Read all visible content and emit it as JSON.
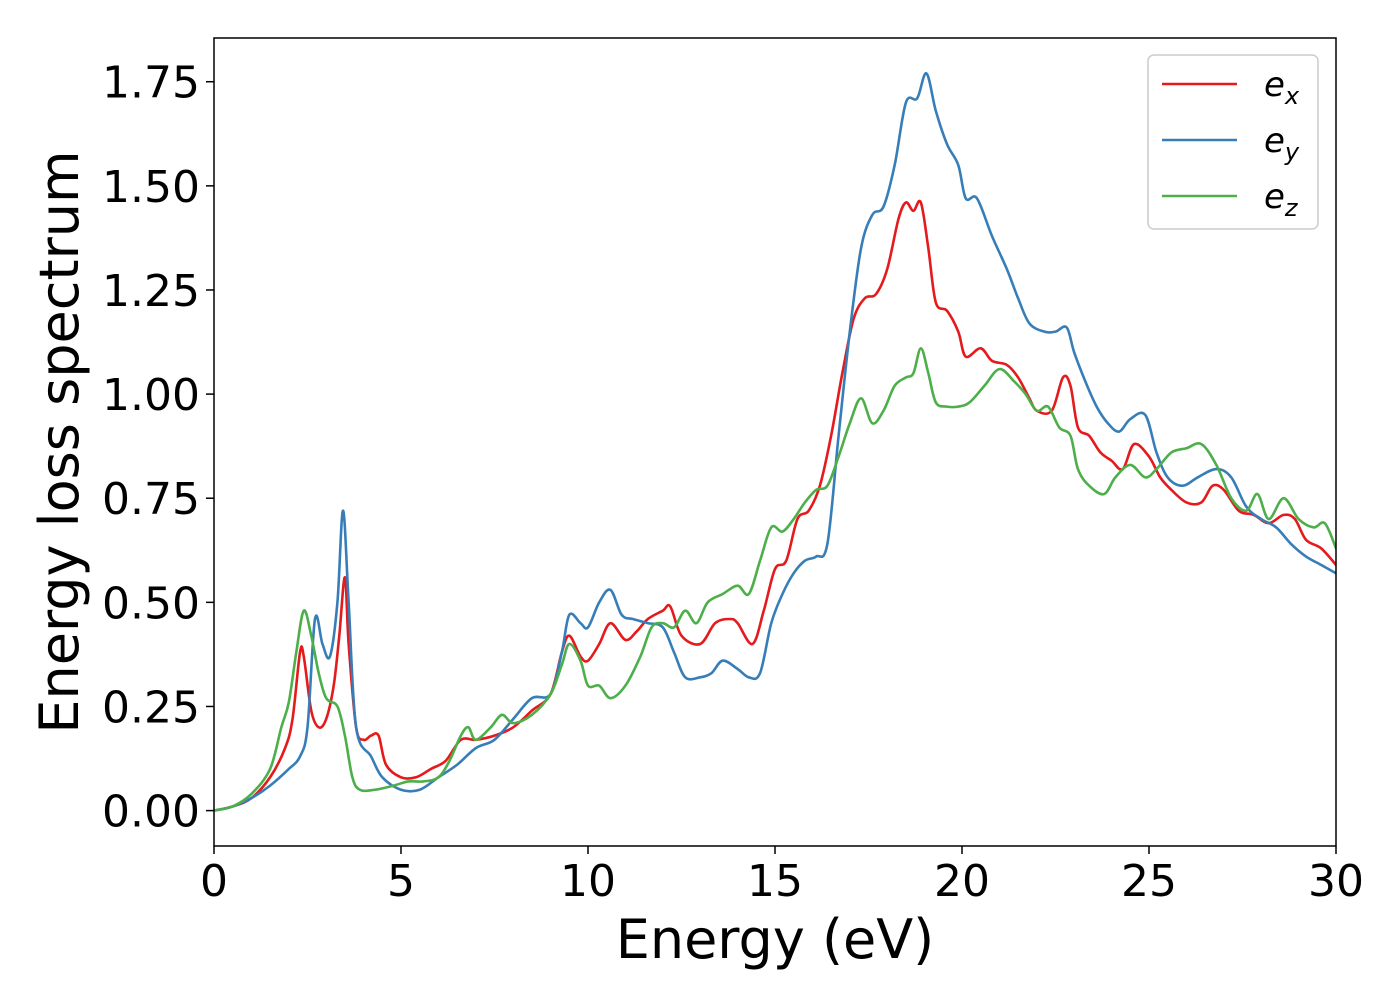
{
  "chart_data": {
    "type": "line",
    "xlabel": "Energy (eV)",
    "ylabel": "Energy loss spectrum",
    "xlim": [
      0,
      30
    ],
    "ylim": [
      -0.085,
      1.855
    ],
    "xticks": [
      0,
      5,
      10,
      15,
      20,
      25,
      30
    ],
    "xtick_labels": [
      "0",
      "5",
      "10",
      "15",
      "20",
      "25",
      "30"
    ],
    "yticks": [
      0,
      0.25,
      0.5,
      0.75,
      1.0,
      1.25,
      1.5,
      1.75
    ],
    "ytick_labels": [
      "0.00",
      "0.25",
      "0.50",
      "0.75",
      "1.00",
      "1.25",
      "1.50",
      "1.75"
    ],
    "grid": false,
    "legend_position": "top-right",
    "series": [
      {
        "name": "e",
        "sub": "x",
        "color": "#e41a1c",
        "points": [
          [
            0,
            0
          ],
          [
            0.5,
            0.01
          ],
          [
            1.0,
            0.03
          ],
          [
            1.5,
            0.08
          ],
          [
            1.9,
            0.15
          ],
          [
            2.1,
            0.22
          ],
          [
            2.3,
            0.38
          ],
          [
            2.4,
            0.37
          ],
          [
            2.6,
            0.24
          ],
          [
            2.8,
            0.2
          ],
          [
            3.0,
            0.22
          ],
          [
            3.2,
            0.3
          ],
          [
            3.35,
            0.42
          ],
          [
            3.5,
            0.56
          ],
          [
            3.6,
            0.4
          ],
          [
            3.8,
            0.2
          ],
          [
            4.0,
            0.17
          ],
          [
            4.2,
            0.18
          ],
          [
            4.4,
            0.18
          ],
          [
            4.6,
            0.11
          ],
          [
            5.0,
            0.08
          ],
          [
            5.4,
            0.08
          ],
          [
            5.8,
            0.1
          ],
          [
            6.2,
            0.12
          ],
          [
            6.6,
            0.17
          ],
          [
            7.0,
            0.17
          ],
          [
            7.5,
            0.18
          ],
          [
            8.0,
            0.2
          ],
          [
            8.5,
            0.24
          ],
          [
            9.0,
            0.28
          ],
          [
            9.3,
            0.38
          ],
          [
            9.5,
            0.42
          ],
          [
            9.8,
            0.37
          ],
          [
            10.0,
            0.36
          ],
          [
            10.3,
            0.4
          ],
          [
            10.6,
            0.45
          ],
          [
            11.0,
            0.41
          ],
          [
            11.3,
            0.43
          ],
          [
            11.6,
            0.46
          ],
          [
            12.0,
            0.48
          ],
          [
            12.2,
            0.49
          ],
          [
            12.5,
            0.42
          ],
          [
            13.0,
            0.4
          ],
          [
            13.4,
            0.45
          ],
          [
            13.8,
            0.46
          ],
          [
            14.0,
            0.45
          ],
          [
            14.4,
            0.4
          ],
          [
            14.7,
            0.48
          ],
          [
            15.0,
            0.58
          ],
          [
            15.3,
            0.6
          ],
          [
            15.6,
            0.7
          ],
          [
            15.9,
            0.72
          ],
          [
            16.2,
            0.78
          ],
          [
            16.5,
            0.9
          ],
          [
            16.8,
            1.05
          ],
          [
            17.1,
            1.18
          ],
          [
            17.4,
            1.23
          ],
          [
            17.7,
            1.24
          ],
          [
            18.0,
            1.3
          ],
          [
            18.3,
            1.42
          ],
          [
            18.5,
            1.46
          ],
          [
            18.7,
            1.44
          ],
          [
            18.9,
            1.46
          ],
          [
            19.1,
            1.35
          ],
          [
            19.3,
            1.22
          ],
          [
            19.6,
            1.2
          ],
          [
            19.9,
            1.15
          ],
          [
            20.1,
            1.09
          ],
          [
            20.5,
            1.11
          ],
          [
            20.8,
            1.08
          ],
          [
            21.2,
            1.07
          ],
          [
            21.5,
            1.04
          ],
          [
            21.8,
            0.99
          ],
          [
            22.0,
            0.96
          ],
          [
            22.4,
            0.96
          ],
          [
            22.7,
            1.04
          ],
          [
            22.9,
            1.02
          ],
          [
            23.1,
            0.92
          ],
          [
            23.4,
            0.9
          ],
          [
            23.7,
            0.86
          ],
          [
            24.0,
            0.84
          ],
          [
            24.3,
            0.82
          ],
          [
            24.6,
            0.88
          ],
          [
            25.0,
            0.85
          ],
          [
            25.3,
            0.8
          ],
          [
            25.6,
            0.77
          ],
          [
            26.0,
            0.74
          ],
          [
            26.4,
            0.74
          ],
          [
            26.7,
            0.78
          ],
          [
            27.0,
            0.77
          ],
          [
            27.4,
            0.72
          ],
          [
            27.8,
            0.71
          ],
          [
            28.2,
            0.69
          ],
          [
            28.6,
            0.71
          ],
          [
            28.9,
            0.7
          ],
          [
            29.2,
            0.65
          ],
          [
            29.6,
            0.63
          ],
          [
            30.0,
            0.59
          ]
        ]
      },
      {
        "name": "e",
        "sub": "y",
        "color": "#377eb8",
        "points": [
          [
            0,
            0
          ],
          [
            0.5,
            0.01
          ],
          [
            1.0,
            0.03
          ],
          [
            1.5,
            0.06
          ],
          [
            2.0,
            0.1
          ],
          [
            2.3,
            0.13
          ],
          [
            2.5,
            0.2
          ],
          [
            2.7,
            0.46
          ],
          [
            2.9,
            0.4
          ],
          [
            3.1,
            0.37
          ],
          [
            3.3,
            0.5
          ],
          [
            3.45,
            0.72
          ],
          [
            3.6,
            0.5
          ],
          [
            3.8,
            0.2
          ],
          [
            4.2,
            0.13
          ],
          [
            4.5,
            0.08
          ],
          [
            5.0,
            0.05
          ],
          [
            5.5,
            0.05
          ],
          [
            6.0,
            0.08
          ],
          [
            6.5,
            0.11
          ],
          [
            7.0,
            0.15
          ],
          [
            7.5,
            0.17
          ],
          [
            8.0,
            0.22
          ],
          [
            8.5,
            0.27
          ],
          [
            9.0,
            0.28
          ],
          [
            9.3,
            0.38
          ],
          [
            9.5,
            0.47
          ],
          [
            9.8,
            0.45
          ],
          [
            10.0,
            0.44
          ],
          [
            10.3,
            0.5
          ],
          [
            10.6,
            0.53
          ],
          [
            10.9,
            0.47
          ],
          [
            11.2,
            0.46
          ],
          [
            11.6,
            0.45
          ],
          [
            12.0,
            0.44
          ],
          [
            12.3,
            0.38
          ],
          [
            12.6,
            0.32
          ],
          [
            13.0,
            0.32
          ],
          [
            13.3,
            0.33
          ],
          [
            13.6,
            0.36
          ],
          [
            14.0,
            0.34
          ],
          [
            14.3,
            0.32
          ],
          [
            14.6,
            0.33
          ],
          [
            14.9,
            0.45
          ],
          [
            15.2,
            0.52
          ],
          [
            15.5,
            0.57
          ],
          [
            15.8,
            0.6
          ],
          [
            16.1,
            0.61
          ],
          [
            16.4,
            0.64
          ],
          [
            16.7,
            0.9
          ],
          [
            17.0,
            1.15
          ],
          [
            17.3,
            1.35
          ],
          [
            17.6,
            1.43
          ],
          [
            17.9,
            1.45
          ],
          [
            18.2,
            1.55
          ],
          [
            18.5,
            1.7
          ],
          [
            18.8,
            1.71
          ],
          [
            19.05,
            1.77
          ],
          [
            19.3,
            1.68
          ],
          [
            19.6,
            1.6
          ],
          [
            19.9,
            1.55
          ],
          [
            20.1,
            1.47
          ],
          [
            20.4,
            1.47
          ],
          [
            20.8,
            1.38
          ],
          [
            21.2,
            1.3
          ],
          [
            21.5,
            1.23
          ],
          [
            21.8,
            1.17
          ],
          [
            22.2,
            1.15
          ],
          [
            22.5,
            1.15
          ],
          [
            22.8,
            1.16
          ],
          [
            23.0,
            1.1
          ],
          [
            23.3,
            1.03
          ],
          [
            23.6,
            0.97
          ],
          [
            23.9,
            0.93
          ],
          [
            24.2,
            0.91
          ],
          [
            24.5,
            0.94
          ],
          [
            24.9,
            0.95
          ],
          [
            25.2,
            0.86
          ],
          [
            25.5,
            0.8
          ],
          [
            25.9,
            0.78
          ],
          [
            26.3,
            0.8
          ],
          [
            26.8,
            0.82
          ],
          [
            27.2,
            0.8
          ],
          [
            27.6,
            0.73
          ],
          [
            28.0,
            0.7
          ],
          [
            28.4,
            0.68
          ],
          [
            28.8,
            0.64
          ],
          [
            29.2,
            0.61
          ],
          [
            29.6,
            0.59
          ],
          [
            30.0,
            0.57
          ]
        ]
      },
      {
        "name": "e",
        "sub": "z",
        "color": "#4daf4a",
        "points": [
          [
            0,
            0
          ],
          [
            0.5,
            0.01
          ],
          [
            1.0,
            0.04
          ],
          [
            1.5,
            0.1
          ],
          [
            1.8,
            0.2
          ],
          [
            2.0,
            0.26
          ],
          [
            2.2,
            0.38
          ],
          [
            2.4,
            0.48
          ],
          [
            2.6,
            0.42
          ],
          [
            2.8,
            0.33
          ],
          [
            3.0,
            0.27
          ],
          [
            3.3,
            0.25
          ],
          [
            3.5,
            0.18
          ],
          [
            3.7,
            0.08
          ],
          [
            3.9,
            0.05
          ],
          [
            4.3,
            0.05
          ],
          [
            4.8,
            0.06
          ],
          [
            5.2,
            0.07
          ],
          [
            5.6,
            0.07
          ],
          [
            6.0,
            0.08
          ],
          [
            6.3,
            0.12
          ],
          [
            6.6,
            0.18
          ],
          [
            6.8,
            0.2
          ],
          [
            7.0,
            0.17
          ],
          [
            7.4,
            0.2
          ],
          [
            7.7,
            0.23
          ],
          [
            8.0,
            0.21
          ],
          [
            8.5,
            0.23
          ],
          [
            9.0,
            0.28
          ],
          [
            9.3,
            0.35
          ],
          [
            9.5,
            0.4
          ],
          [
            9.8,
            0.36
          ],
          [
            10.0,
            0.3
          ],
          [
            10.3,
            0.3
          ],
          [
            10.6,
            0.27
          ],
          [
            11.0,
            0.3
          ],
          [
            11.4,
            0.37
          ],
          [
            11.7,
            0.44
          ],
          [
            12.0,
            0.45
          ],
          [
            12.3,
            0.44
          ],
          [
            12.6,
            0.48
          ],
          [
            12.9,
            0.45
          ],
          [
            13.2,
            0.5
          ],
          [
            13.6,
            0.52
          ],
          [
            14.0,
            0.54
          ],
          [
            14.3,
            0.52
          ],
          [
            14.6,
            0.6
          ],
          [
            14.9,
            0.68
          ],
          [
            15.2,
            0.67
          ],
          [
            15.5,
            0.7
          ],
          [
            15.8,
            0.74
          ],
          [
            16.1,
            0.77
          ],
          [
            16.4,
            0.78
          ],
          [
            16.7,
            0.85
          ],
          [
            17.0,
            0.93
          ],
          [
            17.3,
            0.99
          ],
          [
            17.6,
            0.93
          ],
          [
            17.9,
            0.96
          ],
          [
            18.2,
            1.02
          ],
          [
            18.5,
            1.04
          ],
          [
            18.7,
            1.05
          ],
          [
            18.9,
            1.11
          ],
          [
            19.1,
            1.05
          ],
          [
            19.3,
            0.98
          ],
          [
            19.6,
            0.97
          ],
          [
            19.9,
            0.97
          ],
          [
            20.2,
            0.98
          ],
          [
            20.6,
            1.02
          ],
          [
            21.0,
            1.06
          ],
          [
            21.4,
            1.03
          ],
          [
            21.7,
            1.0
          ],
          [
            22.0,
            0.96
          ],
          [
            22.3,
            0.97
          ],
          [
            22.6,
            0.92
          ],
          [
            22.9,
            0.9
          ],
          [
            23.1,
            0.82
          ],
          [
            23.4,
            0.78
          ],
          [
            23.8,
            0.76
          ],
          [
            24.1,
            0.8
          ],
          [
            24.5,
            0.83
          ],
          [
            24.9,
            0.8
          ],
          [
            25.2,
            0.82
          ],
          [
            25.6,
            0.86
          ],
          [
            26.0,
            0.87
          ],
          [
            26.4,
            0.88
          ],
          [
            26.8,
            0.83
          ],
          [
            27.2,
            0.75
          ],
          [
            27.6,
            0.72
          ],
          [
            27.9,
            0.76
          ],
          [
            28.2,
            0.7
          ],
          [
            28.6,
            0.75
          ],
          [
            29.0,
            0.7
          ],
          [
            29.4,
            0.68
          ],
          [
            29.7,
            0.69
          ],
          [
            30.0,
            0.63
          ]
        ]
      }
    ]
  }
}
